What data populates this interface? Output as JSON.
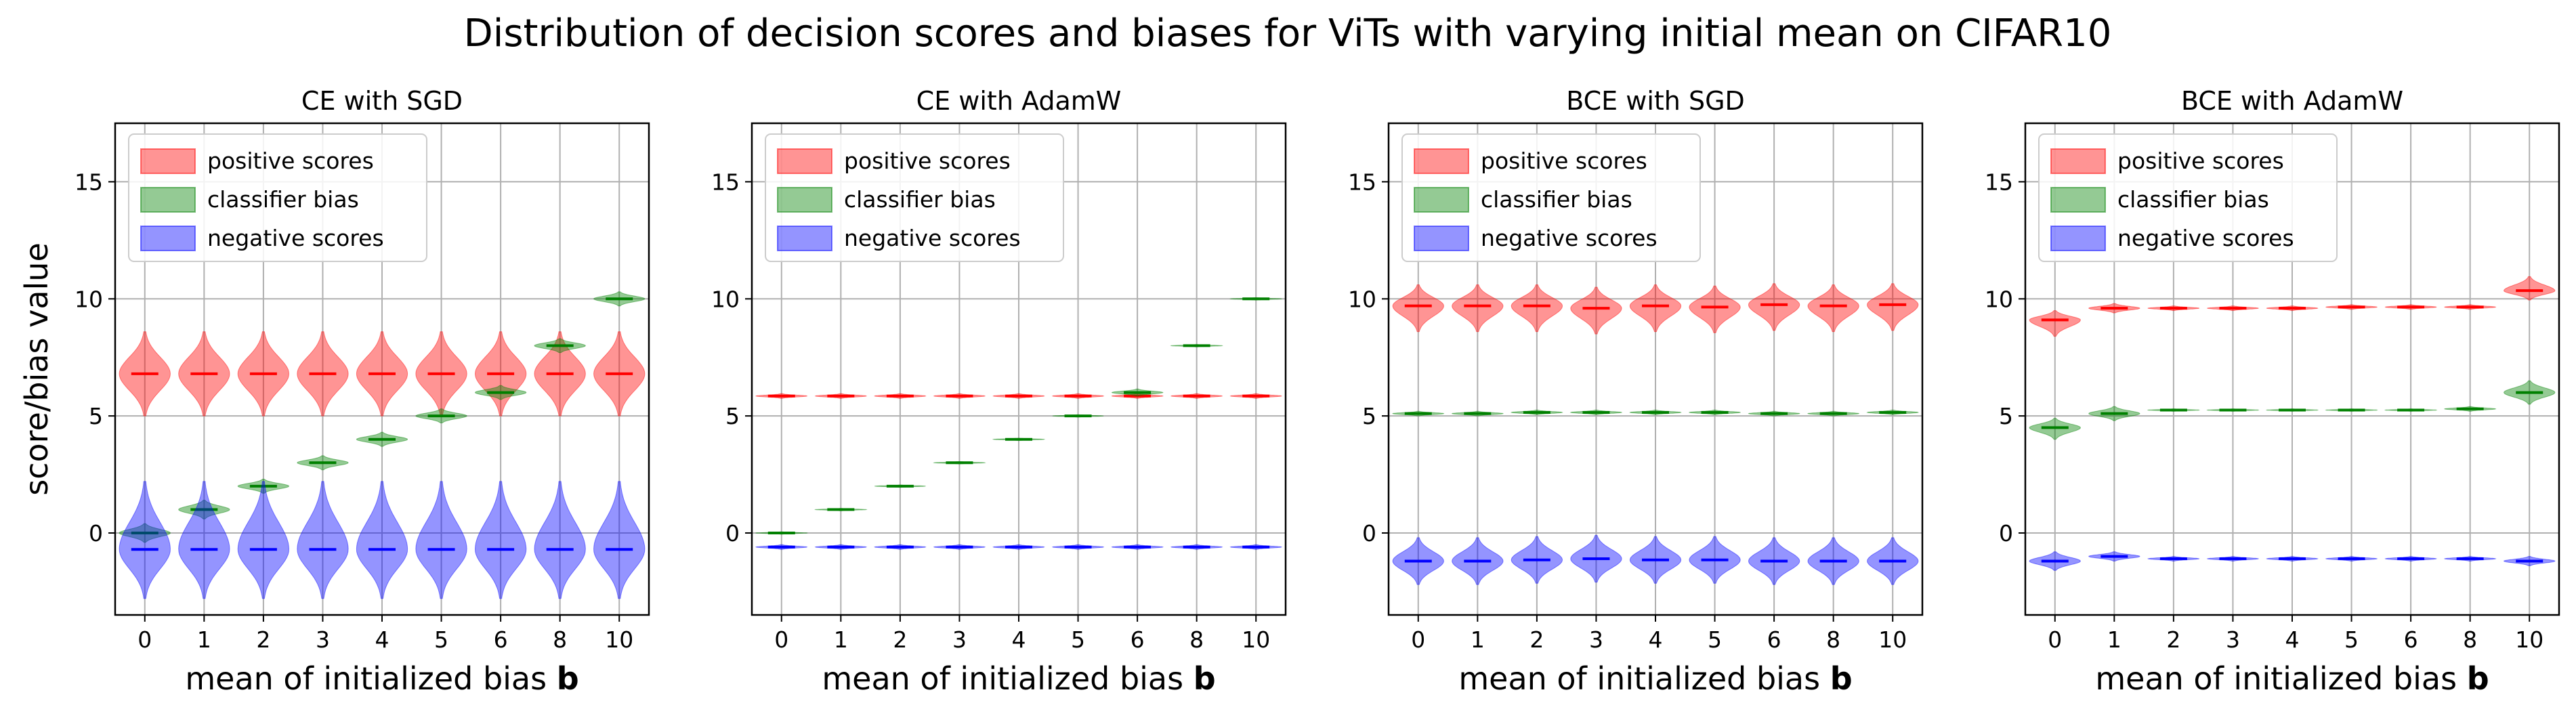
{
  "figure": {
    "title": "Distribution of decision scores and biases for ViTs with varying initial mean on CIFAR10"
  },
  "colors": {
    "positive": "#ff0000",
    "bias": "#008000",
    "negative": "#0000ff",
    "grid": "#b0b0b0"
  },
  "chart_data": [
    {
      "type": "violin",
      "title": "CE with SGD",
      "xlabel": "mean of initialized bias b",
      "ylabel": "score/bias value",
      "categories": [
        "0",
        "1",
        "2",
        "3",
        "4",
        "5",
        "6",
        "8",
        "10"
      ],
      "ylim": [
        -3.5,
        17.5
      ],
      "yticks": [
        0,
        5,
        10,
        15
      ],
      "grid": true,
      "legend": {
        "position": "top-left",
        "entries": [
          "positive scores",
          "classifier bias",
          "negative scores"
        ]
      },
      "series": [
        {
          "name": "positive scores",
          "key": "positive",
          "medians": [
            6.8,
            6.8,
            6.8,
            6.8,
            6.8,
            6.8,
            6.8,
            6.8,
            6.8
          ],
          "spread_low": [
            1.8,
            1.8,
            1.8,
            1.8,
            1.8,
            1.8,
            1.8,
            1.8,
            1.8
          ],
          "spread_high": [
            1.8,
            1.8,
            1.8,
            1.8,
            1.8,
            1.8,
            1.8,
            1.8,
            1.8
          ]
        },
        {
          "name": "classifier bias",
          "key": "bias",
          "medians": [
            0.0,
            1.0,
            2.0,
            3.0,
            4.0,
            5.0,
            6.0,
            8.0,
            10.0
          ],
          "spread_low": [
            0.4,
            0.4,
            0.3,
            0.3,
            0.3,
            0.3,
            0.3,
            0.3,
            0.3
          ],
          "spread_high": [
            0.4,
            0.4,
            0.3,
            0.3,
            0.3,
            0.3,
            0.3,
            0.3,
            0.3
          ]
        },
        {
          "name": "negative scores",
          "key": "negative",
          "medians": [
            -0.7,
            -0.7,
            -0.7,
            -0.7,
            -0.7,
            -0.7,
            -0.7,
            -0.7,
            -0.7
          ],
          "spread_low": [
            2.1,
            2.1,
            2.1,
            2.1,
            2.1,
            2.1,
            2.1,
            2.1,
            2.1
          ],
          "spread_high": [
            2.9,
            2.9,
            2.9,
            2.9,
            2.9,
            2.9,
            2.9,
            2.9,
            2.9
          ]
        }
      ]
    },
    {
      "type": "violin",
      "title": "CE with AdamW",
      "xlabel": "mean of initialized bias b",
      "ylabel": "",
      "categories": [
        "0",
        "1",
        "2",
        "3",
        "4",
        "5",
        "6",
        "8",
        "10"
      ],
      "ylim": [
        -3.5,
        17.5
      ],
      "yticks": [
        0,
        5,
        10,
        15
      ],
      "grid": true,
      "legend": {
        "position": "top-left",
        "entries": [
          "positive scores",
          "classifier bias",
          "negative scores"
        ]
      },
      "series": [
        {
          "name": "positive scores",
          "key": "positive",
          "medians": [
            5.85,
            5.85,
            5.85,
            5.85,
            5.85,
            5.85,
            5.85,
            5.85,
            5.85
          ],
          "spread_low": [
            0.1,
            0.1,
            0.1,
            0.1,
            0.1,
            0.1,
            0.1,
            0.1,
            0.1
          ],
          "spread_high": [
            0.1,
            0.1,
            0.1,
            0.1,
            0.1,
            0.1,
            0.1,
            0.1,
            0.1
          ]
        },
        {
          "name": "classifier bias",
          "key": "bias",
          "medians": [
            0.0,
            1.0,
            2.0,
            3.0,
            4.0,
            5.0,
            6.0,
            8.0,
            10.0
          ],
          "spread_low": [
            0.05,
            0.05,
            0.05,
            0.05,
            0.05,
            0.05,
            0.15,
            0.05,
            0.05
          ],
          "spread_high": [
            0.05,
            0.05,
            0.05,
            0.05,
            0.05,
            0.05,
            0.15,
            0.05,
            0.05
          ]
        },
        {
          "name": "negative scores",
          "key": "negative",
          "medians": [
            -0.6,
            -0.6,
            -0.6,
            -0.6,
            -0.6,
            -0.6,
            -0.6,
            -0.6,
            -0.6
          ],
          "spread_low": [
            0.1,
            0.1,
            0.1,
            0.1,
            0.1,
            0.1,
            0.1,
            0.1,
            0.1
          ],
          "spread_high": [
            0.1,
            0.1,
            0.1,
            0.1,
            0.1,
            0.1,
            0.1,
            0.1,
            0.1
          ]
        }
      ]
    },
    {
      "type": "violin",
      "title": "BCE with SGD",
      "xlabel": "mean of initialized bias b",
      "ylabel": "",
      "categories": [
        "0",
        "1",
        "2",
        "3",
        "4",
        "5",
        "6",
        "8",
        "10"
      ],
      "ylim": [
        -3.5,
        17.5
      ],
      "yticks": [
        0,
        5,
        10,
        15
      ],
      "grid": true,
      "legend": {
        "position": "top-left",
        "entries": [
          "positive scores",
          "classifier bias",
          "negative scores"
        ]
      },
      "series": [
        {
          "name": "positive scores",
          "key": "positive",
          "medians": [
            9.7,
            9.7,
            9.7,
            9.6,
            9.7,
            9.65,
            9.75,
            9.7,
            9.75
          ],
          "spread_low": [
            1.1,
            1.1,
            1.1,
            1.1,
            1.1,
            1.1,
            1.1,
            1.1,
            1.1
          ],
          "spread_high": [
            0.9,
            0.9,
            0.9,
            0.9,
            0.9,
            0.9,
            0.9,
            0.9,
            0.9
          ]
        },
        {
          "name": "classifier bias",
          "key": "bias",
          "medians": [
            5.1,
            5.1,
            5.15,
            5.15,
            5.15,
            5.15,
            5.1,
            5.1,
            5.15
          ],
          "spread_low": [
            0.1,
            0.1,
            0.1,
            0.1,
            0.1,
            0.1,
            0.1,
            0.1,
            0.1
          ],
          "spread_high": [
            0.1,
            0.1,
            0.1,
            0.1,
            0.1,
            0.1,
            0.1,
            0.1,
            0.1
          ]
        },
        {
          "name": "negative scores",
          "key": "negative",
          "medians": [
            -1.2,
            -1.2,
            -1.15,
            -1.1,
            -1.15,
            -1.15,
            -1.2,
            -1.2,
            -1.2
          ],
          "spread_low": [
            1.0,
            1.0,
            1.0,
            1.0,
            1.0,
            1.0,
            1.0,
            1.0,
            1.0
          ],
          "spread_high": [
            1.0,
            1.0,
            1.0,
            1.0,
            1.0,
            1.0,
            1.0,
            1.0,
            1.0
          ]
        }
      ]
    },
    {
      "type": "violin",
      "title": "BCE with AdamW",
      "xlabel": "mean of initialized bias b",
      "ylabel": "",
      "categories": [
        "0",
        "1",
        "2",
        "3",
        "4",
        "5",
        "6",
        "8",
        "10"
      ],
      "ylim": [
        -3.5,
        17.5
      ],
      "yticks": [
        0,
        5,
        10,
        15
      ],
      "grid": true,
      "legend": {
        "position": "top-left",
        "entries": [
          "positive scores",
          "classifier bias",
          "negative scores"
        ]
      },
      "series": [
        {
          "name": "positive scores",
          "key": "positive",
          "medians": [
            9.1,
            9.6,
            9.6,
            9.6,
            9.6,
            9.65,
            9.65,
            9.65,
            10.35
          ],
          "spread_low": [
            0.7,
            0.2,
            0.1,
            0.1,
            0.1,
            0.1,
            0.1,
            0.1,
            0.4
          ],
          "spread_high": [
            0.4,
            0.2,
            0.1,
            0.1,
            0.1,
            0.1,
            0.1,
            0.1,
            0.6
          ]
        },
        {
          "name": "classifier bias",
          "key": "bias",
          "medians": [
            4.5,
            5.1,
            5.25,
            5.25,
            5.25,
            5.25,
            5.25,
            5.3,
            6.0
          ],
          "spread_low": [
            0.5,
            0.3,
            0.05,
            0.05,
            0.05,
            0.05,
            0.05,
            0.1,
            0.5
          ],
          "spread_high": [
            0.4,
            0.3,
            0.05,
            0.05,
            0.05,
            0.05,
            0.05,
            0.1,
            0.5
          ]
        },
        {
          "name": "negative scores",
          "key": "negative",
          "medians": [
            -1.2,
            -1.0,
            -1.1,
            -1.1,
            -1.1,
            -1.1,
            -1.1,
            -1.1,
            -1.2
          ],
          "spread_low": [
            0.4,
            0.2,
            0.1,
            0.1,
            0.1,
            0.1,
            0.1,
            0.1,
            0.2
          ],
          "spread_high": [
            0.4,
            0.2,
            0.1,
            0.1,
            0.1,
            0.1,
            0.1,
            0.1,
            0.2
          ]
        }
      ]
    }
  ]
}
